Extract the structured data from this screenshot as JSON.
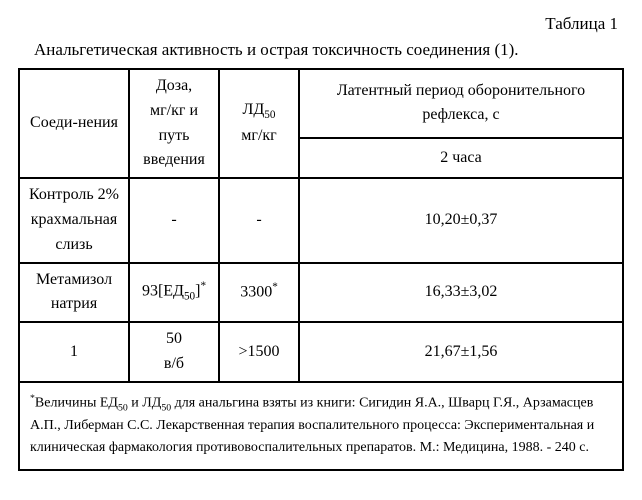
{
  "label": "Таблица 1",
  "caption": "Анальгетическая активность и острая токсичность соединения (1).",
  "headers": {
    "compound": "Соеди-нения",
    "dose_l1": "Доза,",
    "dose_l2": "мг/кг и",
    "dose_l3": "путь",
    "dose_l4": "введения",
    "ld50_l1_pre": "ЛД",
    "ld50_l1_sub": "50",
    "ld50_l2": "мг/кг",
    "latent": "Латентный период оборонительного рефлекса, с",
    "hours": "2 часа"
  },
  "rows": [
    {
      "compound_l1": "Контроль 2%",
      "compound_l2": "крахмальная",
      "compound_l3": "слизь",
      "dose": "-",
      "ld50": "-",
      "value": "10,20±0,37"
    },
    {
      "compound_l1": "Метамизол",
      "compound_l2": "натрия",
      "dose_pre": "93[ЕД",
      "dose_sub": "50",
      "dose_post": "]",
      "ld50": "3300",
      "value": "16,33±3,02"
    },
    {
      "compound": "1",
      "dose_l1": "50",
      "dose_l2": "в/б",
      "ld50": ">1500",
      "value": "21,67±1,56"
    }
  ],
  "footnote": {
    "pre": "Величины ЕД",
    "sub1": "50",
    "mid1": " и ЛД",
    "sub2": "50",
    "rest": " для анальгина взяты из книги: Сигидин Я.А., Шварц Г.Я., Арзамасцев А.П., Либерман С.С. Лекарственная терапия воспалительного процесса: Экспериментальная и клиническая фармакология противовоспалительных препаратов. М.: Медицина, 1988. - 240 с."
  }
}
